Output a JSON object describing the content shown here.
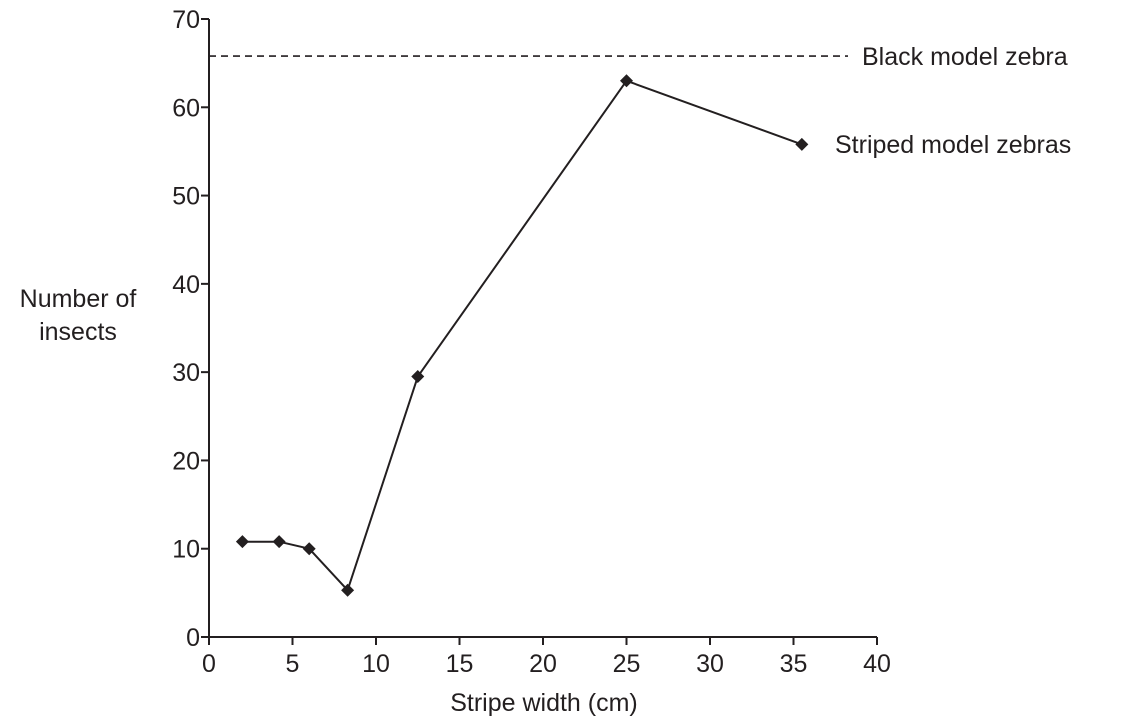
{
  "chart_data": {
    "type": "line",
    "title": "",
    "xlabel": "Stripe width (cm)",
    "ylabel_lines": [
      "Number of",
      "insects"
    ],
    "xlim": [
      0,
      40
    ],
    "ylim": [
      0,
      70
    ],
    "xticks": [
      0,
      5,
      10,
      15,
      20,
      25,
      30,
      35,
      40
    ],
    "yticks": [
      0,
      10,
      20,
      30,
      40,
      50,
      60,
      70
    ],
    "grid": false,
    "series": [
      {
        "name": "Striped model zebras",
        "x": [
          2,
          4.2,
          6,
          8.3,
          12.5,
          25,
          35.5
        ],
        "y": [
          10.8,
          10.8,
          10,
          5.3,
          29.5,
          63,
          55.8
        ],
        "marker": "diamond",
        "line_style": "solid"
      }
    ],
    "reference_lines": [
      {
        "name": "Black model zebra",
        "y": 65.8,
        "line_style": "dashed"
      }
    ],
    "colors": {
      "ink": "#231f20",
      "background": "#ffffff"
    }
  }
}
